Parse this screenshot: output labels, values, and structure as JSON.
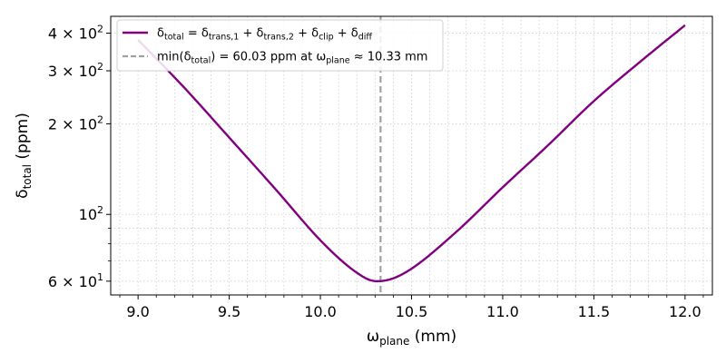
{
  "chart_data": {
    "type": "line",
    "title": "",
    "xlabel": {
      "base": "ω",
      "sub": "plane",
      "unit": " (mm)"
    },
    "ylabel": {
      "base": "δ",
      "sub": "total",
      "unit": " (ppm)"
    },
    "xlim": [
      8.85,
      12.15
    ],
    "ylim": [
      54,
      455
    ],
    "yscale": "log",
    "grid": true,
    "legend_position": "top-left",
    "x_ticks": [
      9.0,
      9.5,
      10.0,
      10.5,
      11.0,
      11.5,
      12.0
    ],
    "x_tick_labels": [
      "9.0",
      "9.5",
      "10.0",
      "10.5",
      "11.0",
      "11.5",
      "12.0"
    ],
    "y_major_ticks": [
      {
        "value": 60,
        "mantissa": "6 × 10",
        "exp": "1"
      },
      {
        "value": 100,
        "mantissa": "10",
        "exp": "2"
      },
      {
        "value": 200,
        "mantissa": "2 × 10",
        "exp": "2"
      },
      {
        "value": 300,
        "mantissa": "3 × 10",
        "exp": "2"
      },
      {
        "value": 400,
        "mantissa": "4 × 10",
        "exp": "2"
      }
    ],
    "y_minor_ticks": [
      70,
      80,
      90
    ],
    "series": [
      {
        "name": "δtotal = δtrans,1 + δtrans,2 + δclip + δdiff",
        "color": "#800080",
        "x": [
          9.0,
          9.25,
          9.5,
          9.75,
          10.0,
          10.2,
          10.33,
          10.5,
          10.75,
          11.0,
          11.25,
          11.5,
          11.75,
          12.0
        ],
        "y": [
          380,
          265,
          180,
          122,
          82,
          64,
          60.03,
          66,
          88,
          123,
          170,
          238,
          320,
          425
        ]
      }
    ],
    "vline": {
      "x": 10.33,
      "color": "#a0a0a0",
      "label": "min(δtotal) = 60.03 ppm at ωplane ≈ 10.33 mm"
    },
    "legend": [
      {
        "kind": "series",
        "color": "#800080",
        "parts": [
          {
            "t": "δ"
          },
          {
            "s": "total"
          },
          {
            "t": " = δ"
          },
          {
            "s": "trans,1"
          },
          {
            "t": " + δ"
          },
          {
            "s": "trans,2"
          },
          {
            "t": " + δ"
          },
          {
            "s": "clip"
          },
          {
            "t": " + δ"
          },
          {
            "s": "diff"
          }
        ]
      },
      {
        "kind": "vline",
        "color": "#a0a0a0",
        "parts": [
          {
            "t": "min(δ"
          },
          {
            "s": "total"
          },
          {
            "t": ") = 60.03 ppm at ω"
          },
          {
            "s": "plane"
          },
          {
            "t": " ≈ 10.33 mm"
          }
        ]
      }
    ]
  }
}
